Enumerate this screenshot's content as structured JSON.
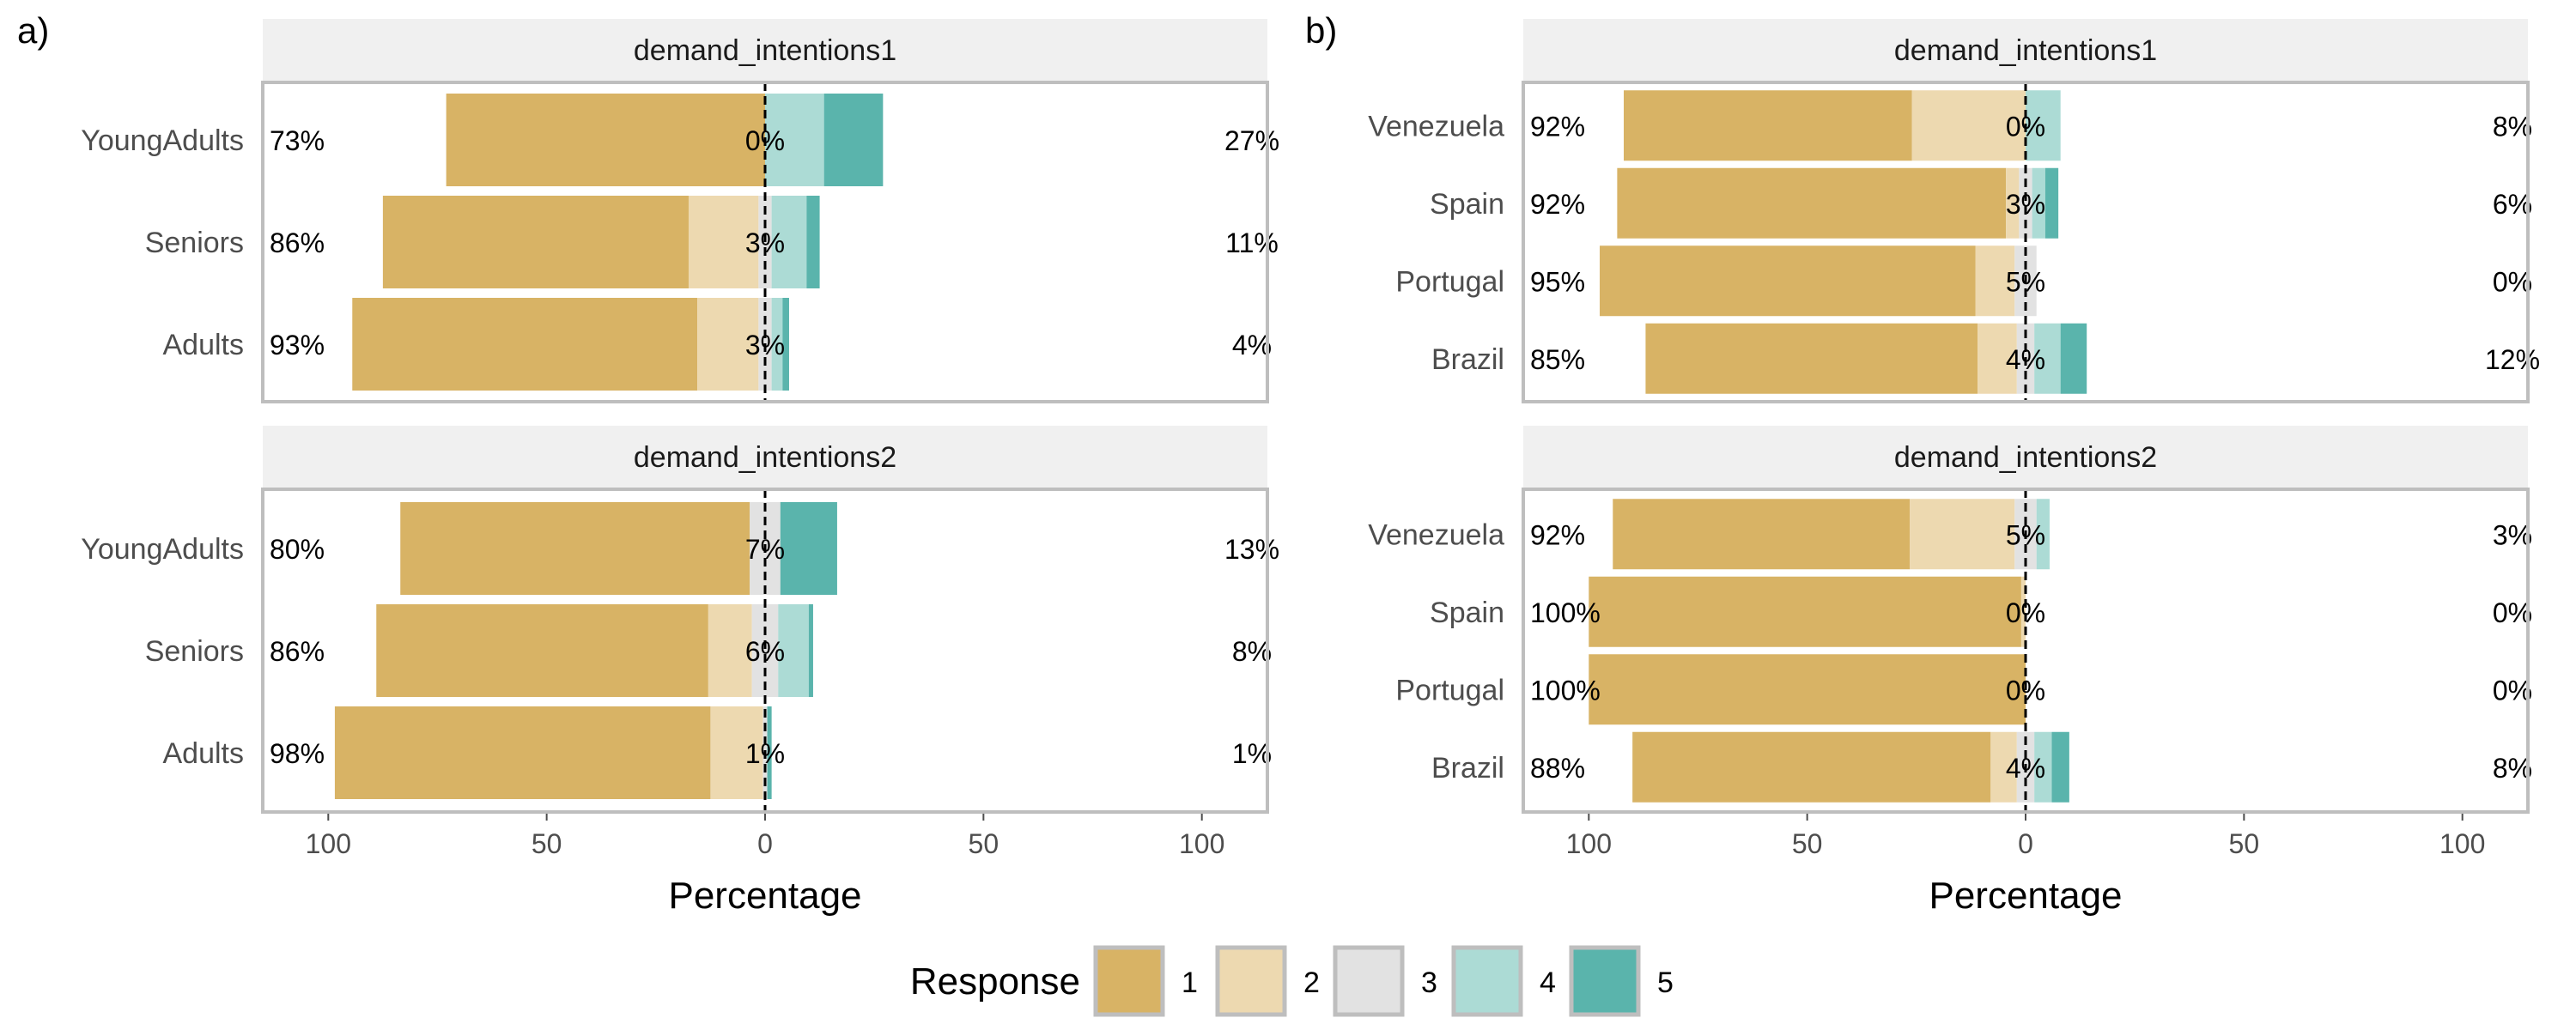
{
  "chart_data": [
    {
      "type": "bar",
      "subtype": "diverging-stacked-likert",
      "tag": "a)",
      "xlabel": "Percentage",
      "xlim": [
        -115,
        115
      ],
      "x_ticks": [
        -100,
        -50,
        0,
        50,
        100
      ],
      "x_tick_labels": [
        "100",
        "50",
        "0",
        "50",
        "100"
      ],
      "facets": [
        {
          "strip": "demand_intentions1",
          "rows": [
            {
              "label": "YoungAdults",
              "values": [
                73,
                0,
                0,
                13.5,
                13.5
              ],
              "low_pct": "73%",
              "mid_pct": "0%",
              "high_pct": "27%"
            },
            {
              "label": "Seniors",
              "values": [
                70,
                16,
                3,
                8,
                3
              ],
              "low_pct": "86%",
              "mid_pct": "3%",
              "high_pct": "11%"
            },
            {
              "label": "Adults",
              "values": [
                79,
                14,
                3,
                2.5,
                1.5
              ],
              "low_pct": "93%",
              "mid_pct": "3%",
              "high_pct": "4%"
            }
          ]
        },
        {
          "strip": "demand_intentions2",
          "rows": [
            {
              "label": "YoungAdults",
              "values": [
                80,
                0,
                7,
                0,
                13
              ],
              "low_pct": "80%",
              "mid_pct": "7%",
              "high_pct": "13%"
            },
            {
              "label": "Seniors",
              "values": [
                76,
                10,
                6,
                7,
                1
              ],
              "low_pct": "86%",
              "mid_pct": "6%",
              "high_pct": "8%"
            },
            {
              "label": "Adults",
              "values": [
                86,
                12,
                1,
                0,
                1
              ],
              "low_pct": "98%",
              "mid_pct": "1%",
              "high_pct": "1%"
            }
          ]
        }
      ]
    },
    {
      "type": "bar",
      "subtype": "diverging-stacked-likert",
      "tag": "b)",
      "xlabel": "Percentage",
      "xlim": [
        -115,
        115
      ],
      "x_ticks": [
        -100,
        -50,
        0,
        50,
        100
      ],
      "x_tick_labels": [
        "100",
        "50",
        "0",
        "50",
        "100"
      ],
      "facets": [
        {
          "strip": "demand_intentions1",
          "rows": [
            {
              "label": "Venezuela",
              "values": [
                66,
                26,
                0,
                8,
                0
              ],
              "low_pct": "92%",
              "mid_pct": "0%",
              "high_pct": "8%"
            },
            {
              "label": "Spain",
              "values": [
                89,
                3,
                3,
                3,
                3
              ],
              "low_pct": "92%",
              "mid_pct": "3%",
              "high_pct": "6%"
            },
            {
              "label": "Portugal",
              "values": [
                86,
                9,
                5,
                0,
                0
              ],
              "low_pct": "95%",
              "mid_pct": "5%",
              "high_pct": "0%"
            },
            {
              "label": "Brazil",
              "values": [
                76,
                9,
                4,
                6,
                6
              ],
              "low_pct": "85%",
              "mid_pct": "4%",
              "high_pct": "12%"
            }
          ]
        },
        {
          "strip": "demand_intentions2",
          "rows": [
            {
              "label": "Venezuela",
              "values": [
                68,
                24,
                5,
                3,
                0
              ],
              "low_pct": "92%",
              "mid_pct": "5%",
              "high_pct": "3%"
            },
            {
              "label": "Spain",
              "values": [
                99,
                1,
                0,
                0,
                0
              ],
              "low_pct": "100%",
              "mid_pct": "0%",
              "high_pct": "0%"
            },
            {
              "label": "Portugal",
              "values": [
                100,
                0,
                0,
                0,
                0
              ],
              "low_pct": "100%",
              "mid_pct": "0%",
              "high_pct": "0%"
            },
            {
              "label": "Brazil",
              "values": [
                82,
                6,
                4,
                4,
                4
              ],
              "low_pct": "88%",
              "mid_pct": "4%",
              "high_pct": "8%"
            }
          ]
        }
      ]
    }
  ],
  "legend": {
    "title": "Response",
    "items": [
      {
        "label": "1",
        "color": "#D8B365"
      },
      {
        "label": "2",
        "color": "#EDD9B0"
      },
      {
        "label": "3",
        "color": "#E2E2E2"
      },
      {
        "label": "4",
        "color": "#ACDBD5"
      },
      {
        "label": "5",
        "color": "#5AB4AC"
      }
    ]
  },
  "colors": {
    "strip_bg": "#F0F0F0",
    "panel_border": "#BEBEBE",
    "zero_line": "#000000"
  }
}
